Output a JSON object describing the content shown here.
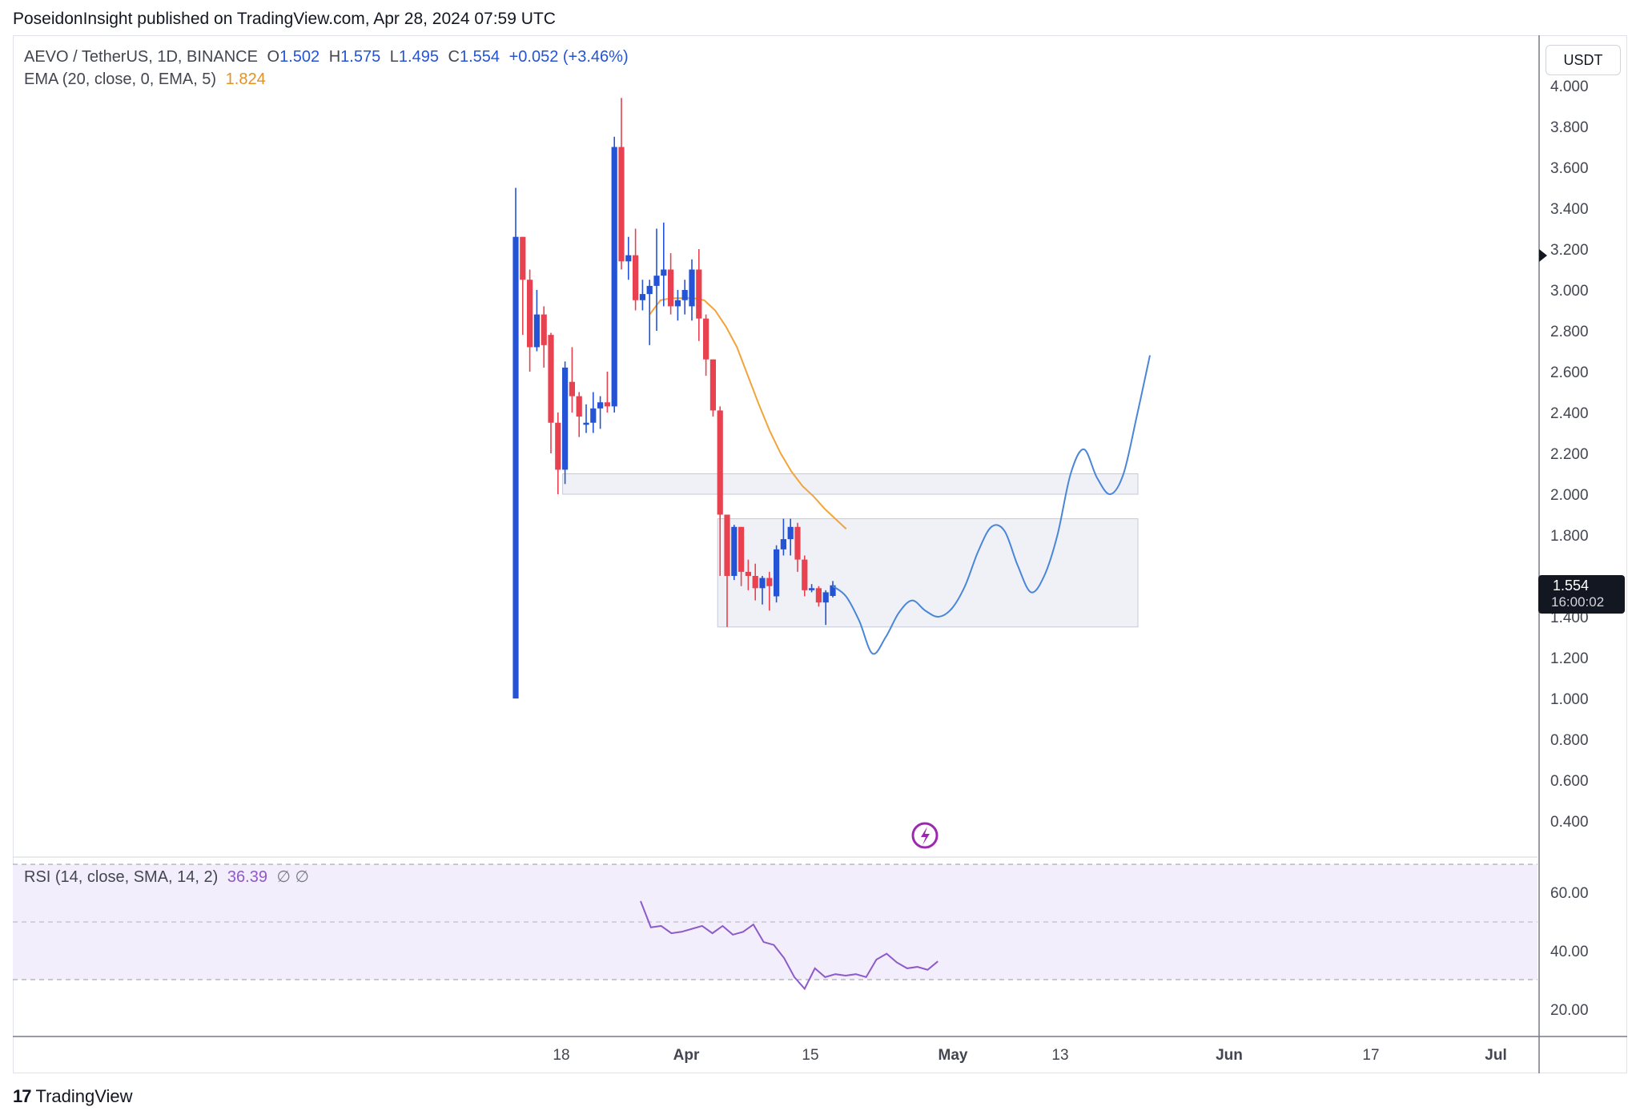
{
  "header": {
    "text": "PoseidonInsight published on TradingView.com, Apr 28, 2024 07:59 UTC"
  },
  "legend": {
    "symbol": "AEVO / TetherUS, 1D, BINANCE",
    "o_label": "O",
    "o_value": "1.502",
    "h_label": "H",
    "h_value": "1.575",
    "l_label": "L",
    "l_value": "1.495",
    "c_label": "C",
    "c_value": "1.554",
    "change": "+0.052 (+3.46%)",
    "ema_label": "EMA (20, close, 0, EMA, 5)",
    "ema_value": "1.824",
    "rsi_label": "RSI (14, close, SMA, 14, 2)",
    "rsi_value": "36.39",
    "rsi_extra": "∅  ∅"
  },
  "currency_button": "USDT",
  "last_price": {
    "price": "1.554",
    "countdown": "16:00:02"
  },
  "price_axis": [
    "4.000",
    "3.800",
    "3.600",
    "3.400",
    "3.200",
    "3.000",
    "2.800",
    "2.600",
    "2.400",
    "2.200",
    "2.000",
    "1.800",
    "1.400",
    "1.200",
    "1.000",
    "0.800",
    "0.600",
    "0.400"
  ],
  "rsi_axis": [
    "60.00",
    "40.00",
    "20.00"
  ],
  "time_axis": [
    "18",
    "Apr",
    "15",
    "May",
    "13",
    "Jun",
    "17",
    "Jul"
  ],
  "footer": {
    "brand": "TradingView",
    "logo": "17"
  },
  "colors": {
    "up": "#2453d6",
    "down": "#e8414f",
    "ema": "#f2a33a",
    "projection": "#4a86d8",
    "rsi": "#8e5ac8",
    "zone_fill": "#eceff4"
  },
  "chart_data": {
    "type": "candlestick",
    "price_ylim": [
      0.3,
      4.1
    ],
    "candles": [
      {
        "o": 1.0,
        "h": 3.5,
        "l": 1.0,
        "c": 3.26
      },
      {
        "o": 3.26,
        "h": 3.26,
        "l": 2.78,
        "c": 3.05
      },
      {
        "o": 3.05,
        "h": 3.1,
        "l": 2.6,
        "c": 2.72
      },
      {
        "o": 2.72,
        "h": 3.0,
        "l": 2.7,
        "c": 2.88
      },
      {
        "o": 2.88,
        "h": 2.92,
        "l": 2.62,
        "c": 2.73
      },
      {
        "o": 2.78,
        "h": 2.79,
        "l": 2.2,
        "c": 2.35
      },
      {
        "o": 2.35,
        "h": 2.4,
        "l": 2.0,
        "c": 2.12
      },
      {
        "o": 2.12,
        "h": 2.65,
        "l": 2.05,
        "c": 2.62
      },
      {
        "o": 2.55,
        "h": 2.72,
        "l": 2.4,
        "c": 2.48
      },
      {
        "o": 2.48,
        "h": 2.5,
        "l": 2.28,
        "c": 2.38
      },
      {
        "o": 2.34,
        "h": 2.44,
        "l": 2.3,
        "c": 2.35
      },
      {
        "o": 2.35,
        "h": 2.5,
        "l": 2.3,
        "c": 2.42
      },
      {
        "o": 2.42,
        "h": 2.48,
        "l": 2.32,
        "c": 2.45
      },
      {
        "o": 2.45,
        "h": 2.6,
        "l": 2.4,
        "c": 2.43
      },
      {
        "o": 2.43,
        "h": 3.75,
        "l": 2.4,
        "c": 3.7
      },
      {
        "o": 3.7,
        "h": 3.94,
        "l": 3.1,
        "c": 3.14
      },
      {
        "o": 3.14,
        "h": 3.26,
        "l": 3.05,
        "c": 3.17
      },
      {
        "o": 3.17,
        "h": 3.3,
        "l": 2.9,
        "c": 2.95
      },
      {
        "o": 2.95,
        "h": 3.05,
        "l": 2.9,
        "c": 2.98
      },
      {
        "o": 2.98,
        "h": 3.05,
        "l": 2.73,
        "c": 3.02
      },
      {
        "o": 3.02,
        "h": 3.3,
        "l": 2.8,
        "c": 3.07
      },
      {
        "o": 3.07,
        "h": 3.33,
        "l": 2.92,
        "c": 3.1
      },
      {
        "o": 3.1,
        "h": 3.18,
        "l": 2.88,
        "c": 2.92
      },
      {
        "o": 2.92,
        "h": 3.0,
        "l": 2.85,
        "c": 2.95
      },
      {
        "o": 2.95,
        "h": 3.05,
        "l": 2.88,
        "c": 3.0
      },
      {
        "o": 2.92,
        "h": 3.15,
        "l": 2.85,
        "c": 3.1
      },
      {
        "o": 3.1,
        "h": 3.2,
        "l": 2.75,
        "c": 2.86
      },
      {
        "o": 2.86,
        "h": 2.88,
        "l": 2.58,
        "c": 2.66
      },
      {
        "o": 2.66,
        "h": 2.66,
        "l": 2.38,
        "c": 2.41
      },
      {
        "o": 2.41,
        "h": 2.43,
        "l": 1.6,
        "c": 1.9
      },
      {
        "o": 1.9,
        "h": 1.9,
        "l": 1.35,
        "c": 1.6
      },
      {
        "o": 1.6,
        "h": 1.85,
        "l": 1.58,
        "c": 1.84
      },
      {
        "o": 1.84,
        "h": 1.84,
        "l": 1.55,
        "c": 1.62
      },
      {
        "o": 1.62,
        "h": 1.68,
        "l": 1.53,
        "c": 1.6
      },
      {
        "o": 1.6,
        "h": 1.66,
        "l": 1.48,
        "c": 1.54
      },
      {
        "o": 1.54,
        "h": 1.6,
        "l": 1.46,
        "c": 1.59
      },
      {
        "o": 1.59,
        "h": 1.62,
        "l": 1.43,
        "c": 1.55
      },
      {
        "o": 1.5,
        "h": 1.75,
        "l": 1.47,
        "c": 1.73
      },
      {
        "o": 1.73,
        "h": 1.88,
        "l": 1.7,
        "c": 1.78
      },
      {
        "o": 1.78,
        "h": 1.88,
        "l": 1.7,
        "c": 1.84
      },
      {
        "o": 1.84,
        "h": 1.86,
        "l": 1.62,
        "c": 1.68
      },
      {
        "o": 1.68,
        "h": 1.7,
        "l": 1.5,
        "c": 1.53
      },
      {
        "o": 1.53,
        "h": 1.56,
        "l": 1.52,
        "c": 1.54
      },
      {
        "o": 1.54,
        "h": 1.55,
        "l": 1.45,
        "c": 1.47
      },
      {
        "o": 1.47,
        "h": 1.53,
        "l": 1.36,
        "c": 1.52
      },
      {
        "o": 1.502,
        "h": 1.575,
        "l": 1.495,
        "c": 1.554
      }
    ],
    "ema": [
      2.88,
      2.95,
      2.96,
      2.96,
      2.96,
      2.95,
      2.9,
      2.82,
      2.72,
      2.58,
      2.44,
      2.31,
      2.2,
      2.11,
      2.04,
      1.99,
      1.93,
      1.88,
      1.83
    ],
    "projection": [
      1.55,
      1.5,
      1.38,
      1.22,
      1.3,
      1.42,
      1.48,
      1.43,
      1.4,
      1.44,
      1.55,
      1.72,
      1.84,
      1.82,
      1.65,
      1.52,
      1.6,
      1.8,
      2.1,
      2.22,
      2.08,
      2.0,
      2.1,
      2.38,
      2.68
    ],
    "zones": [
      {
        "from_bar": 7,
        "to_bar": "future",
        "top": 2.1,
        "bottom": 2.0
      },
      {
        "from_bar": 29,
        "to_bar": "future",
        "top": 1.88,
        "bottom": 1.35
      }
    ],
    "rsi": [
      57,
      48,
      48.5,
      46,
      46.5,
      47.5,
      48.5,
      46,
      48.5,
      45.5,
      46.5,
      49,
      43,
      42,
      37.5,
      31,
      27,
      34,
      31,
      32,
      31.5,
      32,
      31,
      37,
      39,
      36,
      34,
      34.5,
      33.5,
      36.39
    ],
    "rsi_ylim": [
      10,
      70
    ],
    "rsi_levels": [
      70,
      50,
      30
    ]
  }
}
